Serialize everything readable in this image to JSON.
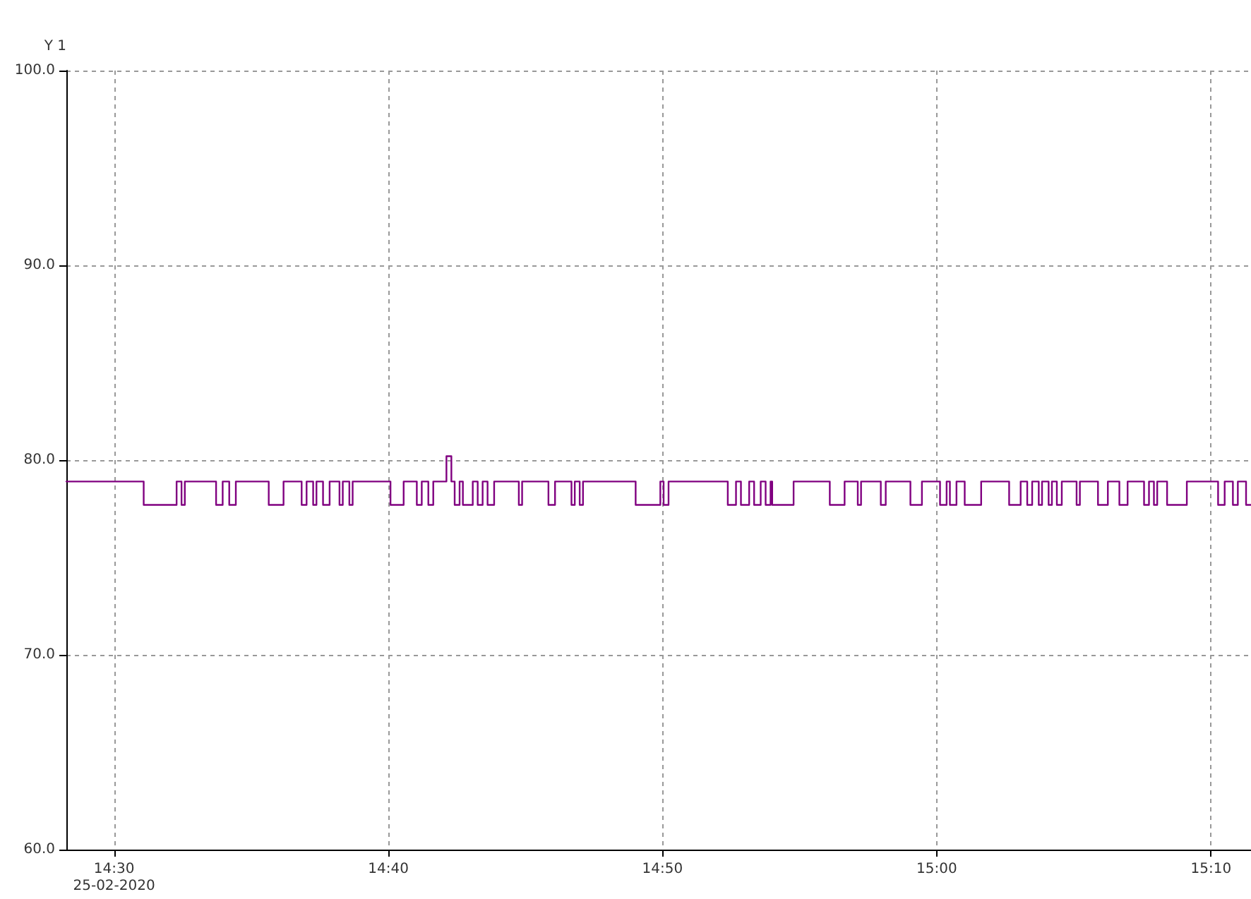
{
  "chart_data": {
    "type": "step",
    "ylabel": "Y 1",
    "xlim": [
      14.471,
      15.191
    ],
    "ylim": [
      60,
      100
    ],
    "xticks": [
      {
        "value": 14.5,
        "label": "14:30\n25-02-2020"
      },
      {
        "value": 14.6667,
        "label": "14:40"
      },
      {
        "value": 14.8333,
        "label": "14:50"
      },
      {
        "value": 15,
        "label": "15:00"
      },
      {
        "value": 15.1667,
        "label": "15:10"
      }
    ],
    "yticks": [
      {
        "value": 60,
        "label": "60.0"
      },
      {
        "value": 70,
        "label": "70.0"
      },
      {
        "value": 80,
        "label": "80.0"
      },
      {
        "value": 90,
        "label": "90.0"
      },
      {
        "value": 100,
        "label": "100.0"
      }
    ],
    "grid": true,
    "marker": "none",
    "line_style": "solid",
    "series": [
      {
        "color": "#800080",
        "x": [
          14.471,
          14.518,
          14.538,
          14.541,
          14.543,
          14.562,
          14.566,
          14.57,
          14.574,
          14.594,
          14.603,
          14.614,
          14.617,
          14.621,
          14.623,
          14.627,
          14.631,
          14.637,
          14.639,
          14.643,
          14.645,
          14.668,
          14.676,
          14.684,
          14.687,
          14.691,
          14.694,
          14.702,
          14.705,
          14.707,
          14.71,
          14.712,
          14.718,
          14.721,
          14.724,
          14.727,
          14.731,
          14.746,
          14.748,
          14.764,
          14.768,
          14.778,
          14.78,
          14.783,
          14.785,
          14.817,
          14.832,
          14.834,
          14.837,
          14.873,
          14.878,
          14.881,
          14.886,
          14.889,
          14.893,
          14.896,
          14.899,
          14.9,
          14.913,
          14.935,
          14.944,
          14.952,
          14.954,
          14.966,
          14.969,
          14.984,
          14.991,
          15.002,
          15.006,
          15.008,
          15.012,
          15.017,
          15.027,
          15.044,
          15.051,
          15.055,
          15.058,
          15.062,
          15.064,
          15.068,
          15.07,
          15.073,
          15.076,
          15.085,
          15.087,
          15.098,
          15.104,
          15.111,
          15.116,
          15.126,
          15.129,
          15.132,
          15.134,
          15.14,
          15.152,
          15.171,
          15.175,
          15.18,
          15.183,
          15.188,
          15.191
        ],
        "values": [
          78.9,
          77.7,
          78.9,
          77.7,
          78.9,
          77.7,
          78.9,
          77.7,
          78.9,
          77.7,
          78.9,
          77.7,
          78.9,
          77.7,
          78.9,
          77.7,
          78.9,
          77.7,
          78.9,
          77.7,
          78.9,
          77.7,
          78.9,
          77.7,
          78.9,
          77.7,
          78.9,
          80.2,
          78.9,
          77.7,
          78.9,
          77.7,
          78.9,
          77.7,
          78.9,
          77.7,
          78.9,
          77.7,
          78.9,
          77.7,
          78.9,
          77.7,
          78.9,
          77.7,
          78.9,
          77.7,
          78.9,
          77.7,
          78.9,
          77.7,
          78.9,
          77.7,
          78.9,
          77.7,
          78.9,
          77.7,
          78.9,
          77.7,
          78.9,
          77.7,
          78.9,
          77.7,
          78.9,
          77.7,
          78.9,
          77.7,
          78.9,
          77.7,
          78.9,
          77.7,
          78.9,
          77.7,
          78.9,
          77.7,
          78.9,
          77.7,
          78.9,
          77.7,
          78.9,
          77.7,
          78.9,
          77.7,
          78.9,
          77.7,
          78.9,
          77.7,
          78.9,
          77.7,
          78.9,
          77.7,
          78.9,
          77.7,
          78.9,
          77.7,
          78.9,
          77.7,
          78.9,
          77.7,
          78.9,
          77.7,
          77.7
        ]
      }
    ]
  }
}
